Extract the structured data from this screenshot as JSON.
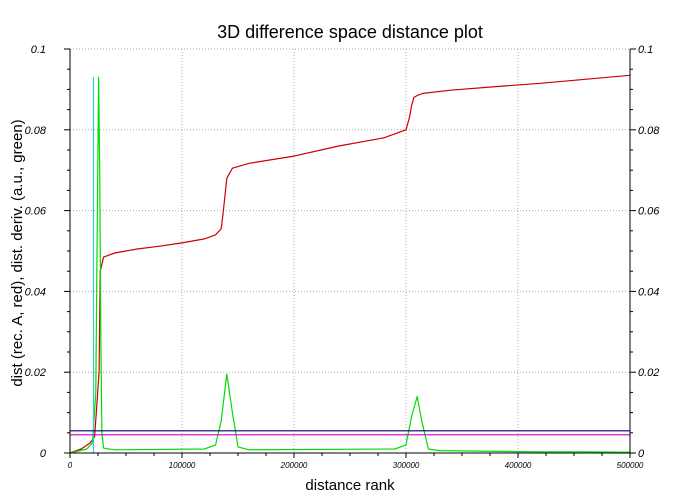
{
  "chart_data": {
    "type": "line",
    "title": "3D difference space distance plot",
    "xlabel": "distance rank",
    "ylabel": "dist (rec. A, red), dist. deriv. (a.u., green)",
    "xlim": [
      0,
      500000
    ],
    "ylim": [
      0,
      0.1
    ],
    "x_ticks": [
      "0",
      "100000",
      "200000",
      "300000",
      "400000",
      "500000"
    ],
    "y_ticks": [
      "0",
      "0.02",
      "0.04",
      "0.06",
      "0.08",
      "0.1"
    ],
    "y_ticks_right": [
      "0",
      "0.02",
      "0.04",
      "0.06",
      "0.08",
      "0.1"
    ],
    "grid": true,
    "colors": {
      "red": "#cc0000",
      "green": "#00dd00",
      "cyan": "#33cccc",
      "navy": "#000066",
      "magenta": "#cc00cc",
      "grid": "#aaaaaa"
    },
    "series": [
      {
        "color": "#cc0000",
        "x": [
          0,
          10000,
          18000,
          22000,
          26000,
          27000,
          30000,
          40000,
          60000,
          80000,
          100000,
          120000,
          130000,
          135000,
          137000,
          140000,
          145000,
          160000,
          200000,
          240000,
          280000,
          300000,
          303000,
          305000,
          307000,
          310000,
          315000,
          340000,
          380000,
          420000,
          460000,
          500000
        ],
        "y": [
          0.0,
          0.001,
          0.0025,
          0.004,
          0.02,
          0.045,
          0.0485,
          0.0495,
          0.0505,
          0.0512,
          0.052,
          0.053,
          0.054,
          0.0555,
          0.06,
          0.068,
          0.0705,
          0.0717,
          0.0735,
          0.076,
          0.078,
          0.08,
          0.083,
          0.086,
          0.088,
          0.0885,
          0.089,
          0.0898,
          0.0907,
          0.0915,
          0.0925,
          0.0935
        ]
      },
      {
        "color": "#00dd00",
        "x": [
          0,
          15000,
          20000,
          23000,
          24500,
          25500,
          26500,
          27500,
          28500,
          30000,
          40000,
          120000,
          130000,
          135000,
          140000,
          145000,
          150000,
          160000,
          290000,
          300000,
          305000,
          310000,
          314000,
          320000,
          330000,
          380000,
          420000,
          460000,
          500000
        ],
        "y": [
          0.0,
          0.001,
          0.0025,
          0.015,
          0.06,
          0.093,
          0.07,
          0.03,
          0.005,
          0.0012,
          0.0008,
          0.001,
          0.002,
          0.008,
          0.0195,
          0.01,
          0.0015,
          0.0008,
          0.001,
          0.002,
          0.009,
          0.014,
          0.008,
          0.001,
          0.0006,
          0.0004,
          0.0003,
          0.0003,
          0.0002
        ]
      },
      {
        "color": "#33cccc",
        "x": [
          21000,
          21000
        ],
        "y": [
          0.0,
          0.093
        ]
      },
      {
        "color": "#000066",
        "x": [
          0,
          500000
        ],
        "y": [
          0.0055,
          0.0055
        ]
      },
      {
        "color": "#cc00cc",
        "x": [
          0,
          500000
        ],
        "y": [
          0.0045,
          0.0045
        ]
      }
    ]
  }
}
